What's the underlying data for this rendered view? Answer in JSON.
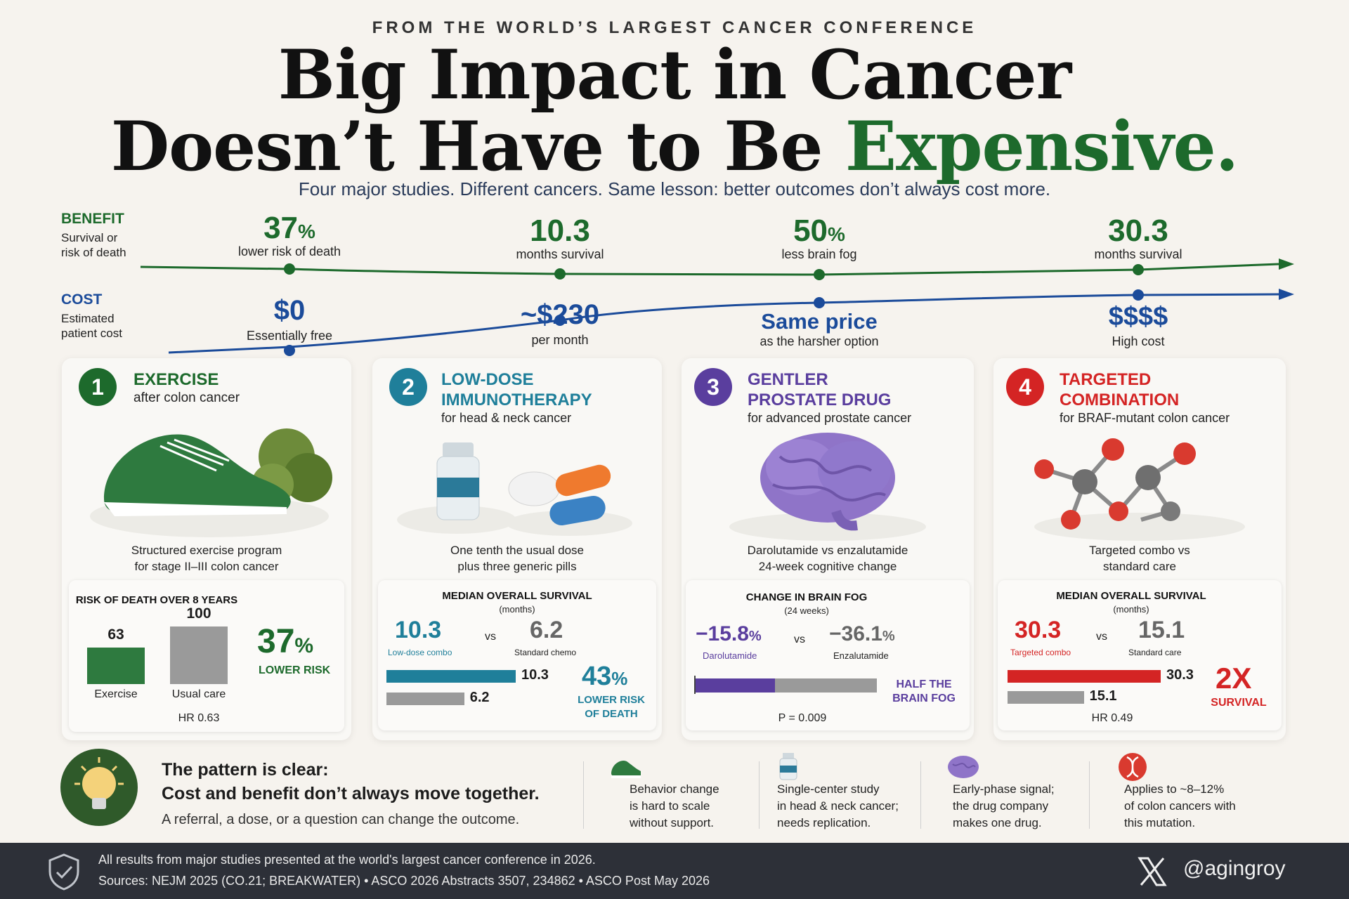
{
  "header": {
    "eyebrow": "FROM THE WORLD’S LARGEST CANCER CONFERENCE",
    "title_line1": "Big Impact in Cancer",
    "title_line2_pre": "Doesn’t Have to Be ",
    "title_line2_accent": "Expensive.",
    "subtitle": "Four major studies. Different cancers. Same lesson: better outcomes don’t always cost more."
  },
  "timeline": {
    "benefit_label": "BENEFIT",
    "benefit_sub1": "Survival or",
    "benefit_sub2": "risk of death",
    "cost_label": "COST",
    "cost_sub1": "Estimated",
    "cost_sub2": "patient cost",
    "benefits": [
      {
        "value": "37",
        "unit": "%",
        "caption": "lower risk of death"
      },
      {
        "value": "10.3",
        "unit": "",
        "caption": "months survival"
      },
      {
        "value": "50",
        "unit": "%",
        "caption": "less brain fog"
      },
      {
        "value": "30.3",
        "unit": "",
        "caption": "months survival"
      }
    ],
    "costs": [
      {
        "value": "$0",
        "caption": "Essentially free"
      },
      {
        "value": "~$230",
        "caption": "per month"
      },
      {
        "value": "Same price",
        "caption": "as the harsher option"
      },
      {
        "value": "$$$$",
        "caption": "High cost"
      }
    ]
  },
  "cards": [
    {
      "number": "1",
      "color": "#1d6a2c",
      "title1": "EXERCISE",
      "title2": "",
      "subtitle": "after colon cancer",
      "icon": "running-shoe-icon",
      "desc1": "Structured exercise program",
      "desc2": "for stage II–III colon cancer",
      "stat": {
        "title": "RISK OF DEATH OVER 8 YEARS",
        "bar_a_value": "63",
        "bar_a_label": "Exercise",
        "bar_b_value": "100",
        "bar_b_label": "Usual care",
        "bar_a_num": 63,
        "bar_b_num": 100,
        "big": "37",
        "big_unit": "%",
        "big_caption": "LOWER RISK",
        "footer": "HR 0.63"
      }
    },
    {
      "number": "2",
      "color": "#1f7f9a",
      "title1": "LOW-DOSE",
      "title2": "IMMUNOTHERAPY",
      "subtitle": "for head & neck cancer",
      "icon": "vial-and-pills-icon",
      "desc1": "One tenth the usual dose",
      "desc2": "plus three generic pills",
      "stat": {
        "title": "MEDIAN OVERALL SURVIVAL",
        "unit": "(months)",
        "a_value": "10.3",
        "a_label": "Low-dose combo",
        "vs": "vs",
        "b_value": "6.2",
        "b_label": "Standard chemo",
        "a_num": 10.3,
        "b_num": 6.2,
        "bar_a_text": "10.3",
        "bar_b_text": "6.2",
        "big": "43",
        "big_unit": "%",
        "big_caption1": "LOWER RISK",
        "big_caption2": "OF DEATH"
      }
    },
    {
      "number": "3",
      "color": "#5a3e9e",
      "title1": "GENTLER",
      "title2": "PROSTATE DRUG",
      "subtitle": "for advanced prostate cancer",
      "icon": "brain-icon",
      "desc1": "Darolutamide vs enzalutamide",
      "desc2": "24-week cognitive change",
      "stat": {
        "title": "CHANGE IN BRAIN FOG",
        "unit": "(24 weeks)",
        "a_value": "−15.8",
        "a_unit": "%",
        "a_label": "Darolutamide",
        "vs": "vs",
        "b_value": "−36.1",
        "b_unit": "%",
        "b_label": "Enzalutamide",
        "a_num": 15.8,
        "b_num": 36.1,
        "big_caption1": "HALF THE",
        "big_caption2": "BRAIN FOG",
        "footer": "P = 0.009"
      }
    },
    {
      "number": "4",
      "color": "#d42424",
      "title1": "TARGETED",
      "title2": "COMBINATION",
      "subtitle": "for BRAF-mutant colon cancer",
      "icon": "molecule-icon",
      "desc1": "Targeted combo vs",
      "desc2": "standard care",
      "stat": {
        "title": "MEDIAN OVERALL SURVIVAL",
        "unit": "(months)",
        "a_value": "30.3",
        "a_label": "Targeted combo",
        "vs": "vs",
        "b_value": "15.1",
        "b_label": "Standard care",
        "a_num": 30.3,
        "b_num": 15.1,
        "bar_a_text": "30.3",
        "bar_b_text": "15.1",
        "big": "2X",
        "big_caption1": "SURVIVAL",
        "footer": "HR 0.49"
      }
    }
  ],
  "pattern": {
    "title1": "The pattern is clear:",
    "title2": "Cost and benefit don’t always move together.",
    "sub": "A referral, a dose, or a question can change the outcome."
  },
  "notes": [
    {
      "icon": "shoe-icon",
      "l1": "Behavior change",
      "l2": "is hard to scale",
      "l3": "without support."
    },
    {
      "icon": "vial-icon",
      "l1": "Single-center study",
      "l2": "in head & neck cancer;",
      "l3": "needs replication."
    },
    {
      "icon": "brain-small-icon",
      "l1": "Early-phase signal;",
      "l2": "the drug company",
      "l3": "makes one drug."
    },
    {
      "icon": "dna-icon",
      "l1": "Applies to ~8–12%",
      "l2": "of colon cancers with",
      "l3": "this mutation."
    }
  ],
  "footer": {
    "line1": "All results from major studies presented at the world's largest cancer conference in 2026.",
    "line2": "Sources: NEJM 2025 (CO.21; BREAKWATER)  •  ASCO 2026 Abstracts 3507, 234862  •  ASCO Post May 2026",
    "handle": "@agingroy"
  }
}
